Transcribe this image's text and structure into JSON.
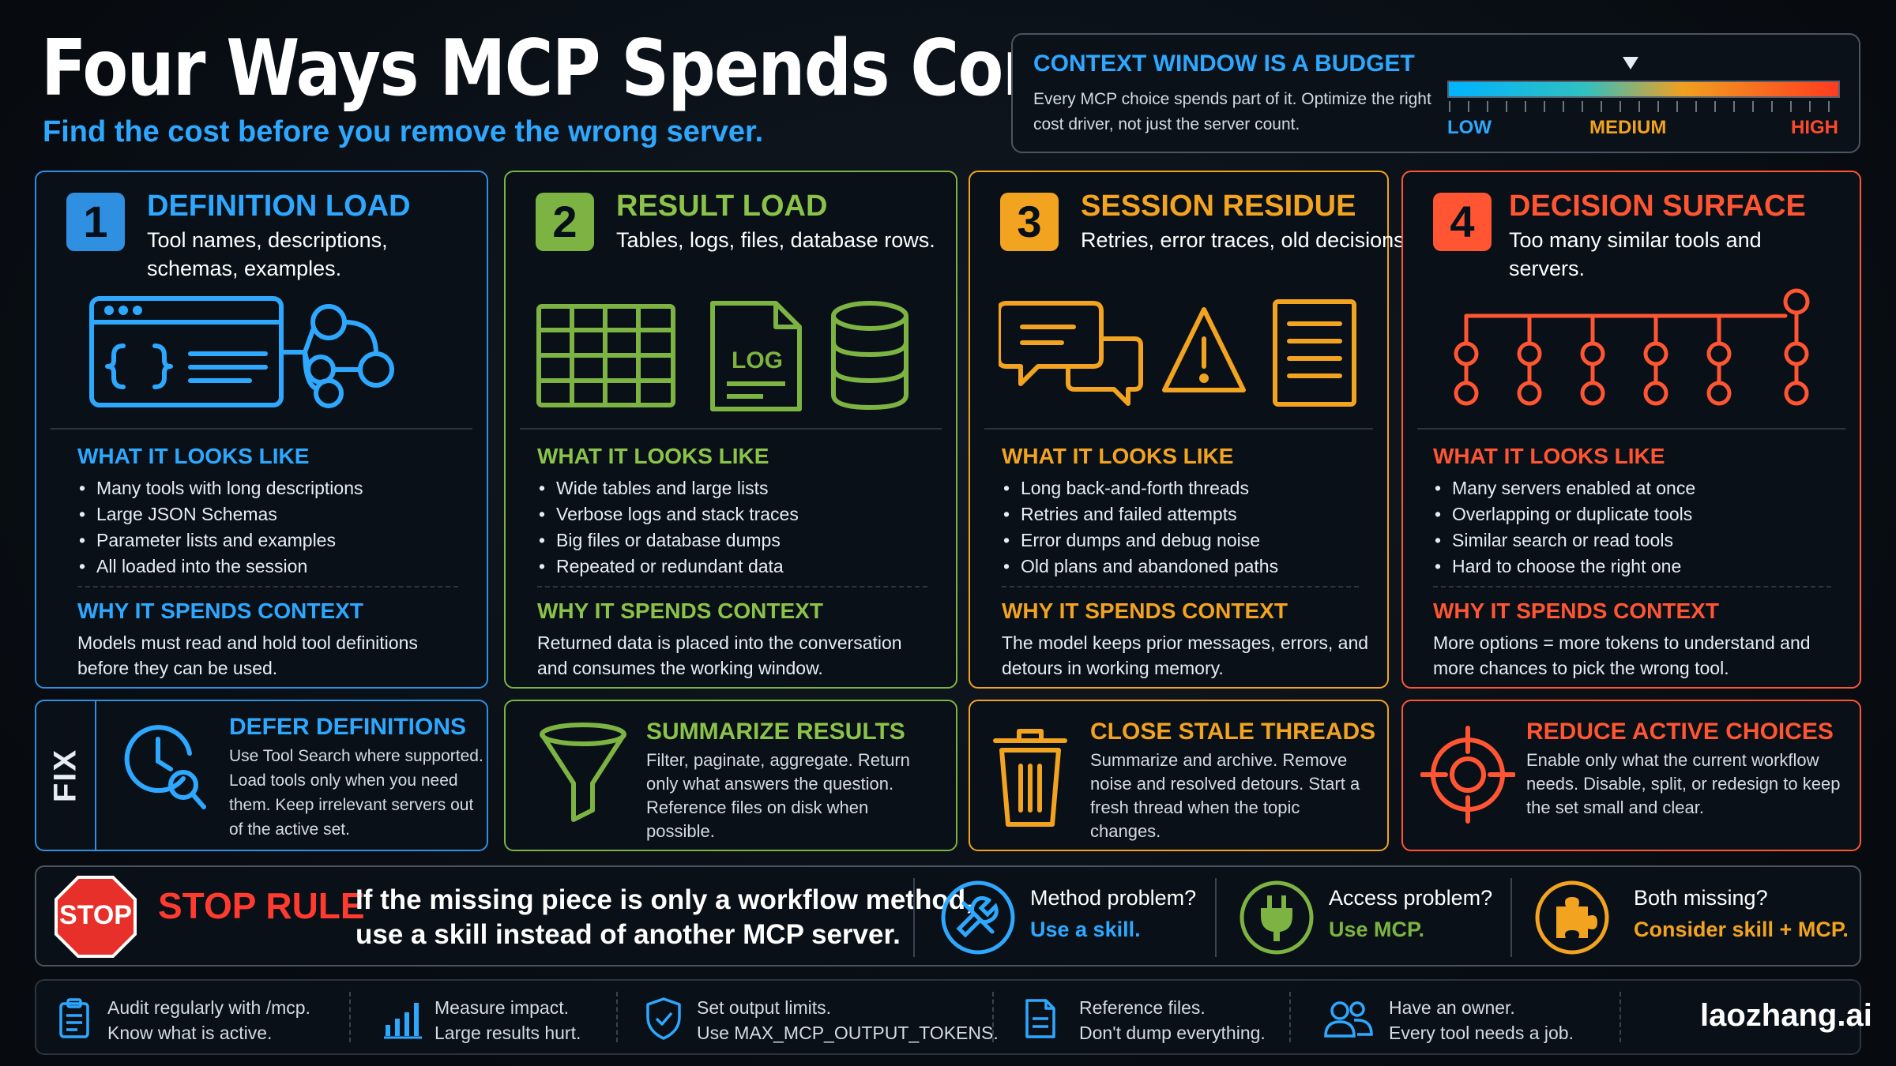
{
  "header": {
    "title": "Four Ways MCP Spends Context",
    "subtitle": "Find the cost before you remove the wrong server."
  },
  "budget": {
    "title": "CONTEXT WINDOW IS A BUDGET",
    "text": "Every MCP choice spends part of it. Optimize the right cost driver, not just the server count.",
    "low": "LOW",
    "medium": "MEDIUM",
    "high": "HIGH"
  },
  "colors": {
    "blue": "#2f8fe0",
    "green": "#7cb342",
    "orange": "#f2a31f",
    "red": "#ff5533"
  },
  "cards": [
    {
      "num": "1",
      "title": "DEFINITION LOAD",
      "subtitle": "Tool names, descriptions, schemas, examples.",
      "looks_title": "WHAT IT LOOKS LIKE",
      "bullets": [
        "Many tools with long descriptions",
        "Large JSON Schemas",
        "Parameter lists and examples",
        "All loaded into the session"
      ],
      "why_title": "WHY IT SPENDS CONTEXT",
      "why": "Models must read and hold tool definitions before they can be used."
    },
    {
      "num": "2",
      "title": "RESULT LOAD",
      "subtitle": "Tables, logs, files, database rows.",
      "log_label": "LOG",
      "looks_title": "WHAT IT LOOKS LIKE",
      "bullets": [
        "Wide tables and large lists",
        "Verbose logs and stack traces",
        "Big files or database dumps",
        "Repeated or redundant data"
      ],
      "why_title": "WHY IT SPENDS CONTEXT",
      "why": "Returned data is placed into the conversation and consumes the working window."
    },
    {
      "num": "3",
      "title": "SESSION RESIDUE",
      "subtitle": "Retries, error traces, old decisions.",
      "looks_title": "WHAT IT LOOKS LIKE",
      "bullets": [
        "Long back-and-forth threads",
        "Retries and failed attempts",
        "Error dumps and debug noise",
        "Old plans and abandoned paths"
      ],
      "why_title": "WHY IT SPENDS CONTEXT",
      "why": "The model keeps prior messages, errors, and detours in working memory."
    },
    {
      "num": "4",
      "title": "DECISION SURFACE",
      "subtitle": "Too many similar tools and servers.",
      "looks_title": "WHAT IT LOOKS LIKE",
      "bullets": [
        "Many servers enabled at once",
        "Overlapping or duplicate tools",
        "Similar search or read tools",
        "Hard to choose the right one"
      ],
      "why_title": "WHY IT SPENDS CONTEXT",
      "why": "More options = more tokens to understand and more chances to pick the wrong tool."
    }
  ],
  "fix": {
    "label": "FIX",
    "items": [
      {
        "title": "DEFER DEFINITIONS",
        "text": "Use Tool Search where supported. Load tools only when you need them. Keep irrelevant servers out of the active set."
      },
      {
        "title": "SUMMARIZE RESULTS",
        "text": "Filter, paginate, aggregate. Return only what answers the question. Reference files on disk when possible."
      },
      {
        "title": "CLOSE STALE THREADS",
        "text": "Summarize and archive. Remove noise and resolved detours. Start a fresh thread when the topic changes."
      },
      {
        "title": "REDUCE ACTIVE CHOICES",
        "text": "Enable only what the current workflow needs. Disable, split, or redesign to keep the set small and clear."
      }
    ]
  },
  "stop_rule": {
    "sign": "STOP",
    "label": "STOP RULE",
    "line1": "If the missing piece is only a workflow method,",
    "line2": "use a skill instead of another MCP server.",
    "options": [
      {
        "q": "Method problem?",
        "a": "Use a skill."
      },
      {
        "q": "Access problem?",
        "a": "Use MCP."
      },
      {
        "q": "Both missing?",
        "a": "Consider skill + MCP."
      }
    ]
  },
  "footer": {
    "items": [
      {
        "l1": "Audit regularly with /mcp.",
        "l2": "Know what is active."
      },
      {
        "l1": "Measure impact.",
        "l2": "Large results hurt."
      },
      {
        "l1": "Set output limits.",
        "l2": "Use MAX_MCP_OUTPUT_TOKENS."
      },
      {
        "l1": "Reference files.",
        "l2": "Don't dump everything."
      },
      {
        "l1": "Have an owner.",
        "l2": "Every tool needs a job."
      }
    ],
    "brand": "laozhang.ai"
  }
}
